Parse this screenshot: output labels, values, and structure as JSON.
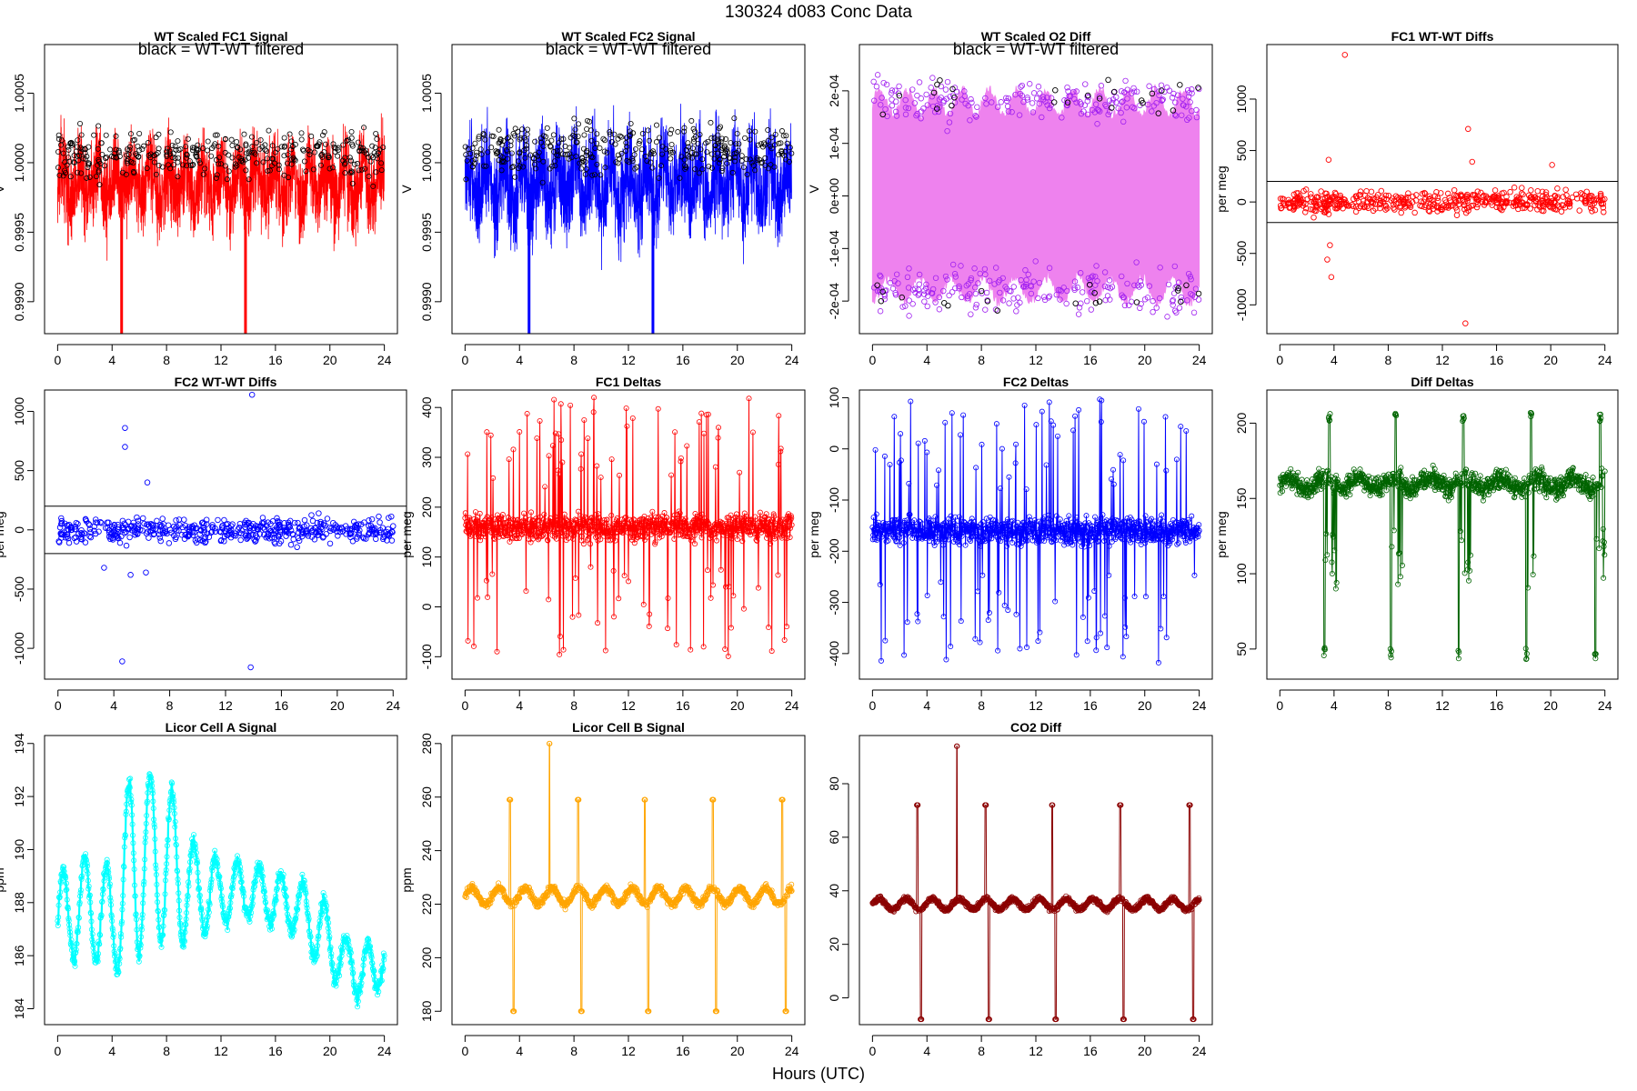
{
  "page_title": "130324   d083   Conc Data",
  "x_axis_title": "Hours (UTC)",
  "filter_note": "black = WT-WT filtered",
  "chart_data": [
    {
      "id": "fc1-signal",
      "type": "line",
      "title": "WT Scaled FC1 Signal",
      "ylabel": "V",
      "ylim": [
        0.99877,
        1.00085
      ],
      "yticks": [
        0.999,
        0.9995,
        1.0,
        1.0005
      ],
      "ytick_labels": [
        "0.9990",
        "0.9995",
        "1.0000",
        "1.0005"
      ],
      "xlim": [
        -0.96,
        24.96
      ],
      "xticks": [
        0,
        4,
        8,
        12,
        16,
        20,
        24
      ],
      "color": "#ff0000",
      "points_color": "#000000",
      "baseline": 0.99985,
      "amplitude": 0.00035,
      "series_style": "dense-noise",
      "note": "black = WT-WT filtered",
      "gaps": [
        {
          "x": 4.7,
          "to": 0.99875
        },
        {
          "x": 13.8,
          "to": 0.99875
        }
      ]
    },
    {
      "id": "fc2-signal",
      "type": "line",
      "title": "WT Scaled FC2 Signal",
      "ylabel": "V",
      "ylim": [
        0.99877,
        1.00085
      ],
      "yticks": [
        0.999,
        0.9995,
        1.0,
        1.0005
      ],
      "ytick_labels": [
        "0.9990",
        "0.9995",
        "1.0000",
        "1.0005"
      ],
      "xlim": [
        -0.96,
        24.96
      ],
      "xticks": [
        0,
        4,
        8,
        12,
        16,
        20,
        24
      ],
      "color": "#0000ff",
      "points_color": "#000000",
      "baseline": 0.99985,
      "amplitude": 0.0004,
      "series_style": "dense-noise",
      "note": "black = WT-WT filtered",
      "gaps": [
        {
          "x": 4.7,
          "to": 0.99875
        },
        {
          "x": 13.8,
          "to": 0.99875
        }
      ]
    },
    {
      "id": "o2-diff",
      "type": "line",
      "title": "WT Scaled O2 Diff",
      "ylabel": "V",
      "ylim": [
        -0.000262,
        0.000288
      ],
      "yticks": [
        -0.0002,
        -0.0001,
        0,
        0.0001,
        0.0002
      ],
      "ytick_labels": [
        "-2e-04",
        "-1e-04",
        "0e+00",
        "1e-04",
        "2e-04"
      ],
      "xlim": [
        -0.96,
        24.96
      ],
      "xticks": [
        0,
        4,
        8,
        12,
        16,
        20,
        24
      ],
      "color": "#ee82ee",
      "points_color": "#a020f0",
      "baseline": 0,
      "amplitude": 0.0002,
      "series_style": "band",
      "note": "black = WT-WT filtered"
    },
    {
      "id": "fc1-wtwt",
      "type": "scatter",
      "title": "FC1 WT-WT Diffs",
      "ylabel": "per meg",
      "ylim": [
        -1280,
        1530
      ],
      "yticks": [
        -1000,
        -500,
        0,
        500,
        1000
      ],
      "ytick_labels": [
        "-1000",
        "-500",
        "0",
        "500",
        "1000"
      ],
      "xlim": [
        -0.96,
        24.96
      ],
      "xticks": [
        0,
        4,
        8,
        12,
        16,
        20,
        24
      ],
      "color": "#ff0000",
      "hlines": [
        200,
        -200
      ],
      "baseline": 0,
      "amplitude": 90,
      "outliers": [
        {
          "x": 4.8,
          "y": 1430
        },
        {
          "x": 3.6,
          "y": 410
        },
        {
          "x": 3.5,
          "y": -560
        },
        {
          "x": 3.8,
          "y": -730
        },
        {
          "x": 3.7,
          "y": -420
        },
        {
          "x": 13.9,
          "y": 710
        },
        {
          "x": 13.7,
          "y": -1180
        },
        {
          "x": 14.2,
          "y": 390
        },
        {
          "x": 20.1,
          "y": 360
        }
      ]
    },
    {
      "id": "fc2-wtwt",
      "type": "scatter",
      "title": "FC2 WT-WT Diffs",
      "ylabel": "per meg",
      "ylim": [
        -1260,
        1180
      ],
      "yticks": [
        -1000,
        -500,
        0,
        500,
        1000
      ],
      "ytick_labels": [
        "-1000",
        "-500",
        "0",
        "500",
        "1000"
      ],
      "xlim": [
        -0.96,
        24.96
      ],
      "xticks": [
        0,
        4,
        8,
        12,
        16,
        20,
        24
      ],
      "color": "#0000ff",
      "hlines": [
        200,
        -200
      ],
      "baseline": 0,
      "amplitude": 90,
      "outliers": [
        {
          "x": 4.8,
          "y": 860
        },
        {
          "x": 4.8,
          "y": 700
        },
        {
          "x": 4.6,
          "y": -1110
        },
        {
          "x": 6.4,
          "y": 400
        },
        {
          "x": 3.3,
          "y": -320
        },
        {
          "x": 13.9,
          "y": 1140
        },
        {
          "x": 13.8,
          "y": -1160
        },
        {
          "x": 5.2,
          "y": -380
        },
        {
          "x": 6.3,
          "y": -360
        }
      ]
    },
    {
      "id": "fc1-deltas",
      "type": "line",
      "title": "FC1 Deltas",
      "ylabel": "per meg",
      "ylim": [
        -145,
        435
      ],
      "yticks": [
        -100,
        0,
        100,
        200,
        300,
        400
      ],
      "ytick_labels": [
        "-100",
        "0",
        "100",
        "200",
        "300",
        "400"
      ],
      "xlim": [
        -0.96,
        24.96
      ],
      "xticks": [
        0,
        4,
        8,
        12,
        16,
        20,
        24
      ],
      "color": "#ff0000",
      "baseline": 160,
      "amplitude": 50,
      "series_style": "spiky"
    },
    {
      "id": "fc2-deltas",
      "type": "line",
      "title": "FC2 Deltas",
      "ylabel": "per meg",
      "ylim": [
        -450,
        115
      ],
      "yticks": [
        -400,
        -300,
        -200,
        -100,
        0,
        100
      ],
      "ytick_labels": [
        "-400",
        "-300",
        "-200",
        "-100",
        "0",
        "100"
      ],
      "xlim": [
        -0.96,
        24.96
      ],
      "xticks": [
        0,
        4,
        8,
        12,
        16,
        20,
        24
      ],
      "color": "#0000ff",
      "baseline": -160,
      "amplitude": 50,
      "series_style": "spiky"
    },
    {
      "id": "diff-deltas",
      "type": "line",
      "title": "Diff Deltas",
      "ylabel": "per meg",
      "ylim": [
        30,
        222
      ],
      "yticks": [
        50,
        100,
        150,
        200
      ],
      "ytick_labels": [
        "50",
        "100",
        "150",
        "200"
      ],
      "xlim": [
        -0.96,
        24.96
      ],
      "xticks": [
        0,
        4,
        8,
        12,
        16,
        20,
        24
      ],
      "color": "#006400",
      "baseline": 160,
      "amplitude": 6,
      "series_style": "cal-dips",
      "cal_times": [
        3.3,
        8.2,
        13.2,
        18.2,
        23.3
      ],
      "cal_low": 43,
      "cal_high": 207
    },
    {
      "id": "licor-a",
      "type": "line",
      "title": "Licor Cell A Signal",
      "ylabel": "ppm",
      "ylim": [
        183.4,
        194.3
      ],
      "yticks": [
        184,
        186,
        188,
        190,
        192,
        194
      ],
      "ytick_labels": [
        "184",
        "186",
        "188",
        "190",
        "192",
        "194"
      ],
      "xlim": [
        -0.96,
        24.96
      ],
      "xticks": [
        0,
        4,
        8,
        12,
        16,
        20,
        24
      ],
      "color": "#00ffff",
      "series_style": "oscillation",
      "envelope": [
        [
          0,
          187.2,
          1.9
        ],
        [
          2,
          188.0,
          1.8
        ],
        [
          4,
          187.3,
          2.0
        ],
        [
          5.5,
          189.5,
          3.8
        ],
        [
          7,
          189.7,
          3.0
        ],
        [
          8.5,
          189.3,
          3.0
        ],
        [
          10,
          188.4,
          1.8
        ],
        [
          12,
          188.4,
          1.2
        ],
        [
          14,
          188.5,
          1.0
        ],
        [
          16,
          188.1,
          1.0
        ],
        [
          18,
          187.8,
          1.0
        ],
        [
          19.5,
          186.7,
          1.5
        ],
        [
          21,
          185.8,
          0.9
        ],
        [
          23,
          185.2,
          1.3
        ],
        [
          24,
          186.0,
          0.6
        ]
      ]
    },
    {
      "id": "licor-b",
      "type": "line",
      "title": "Licor Cell B Signal",
      "ylabel": "ppm",
      "ylim": [
        175,
        283
      ],
      "yticks": [
        180,
        200,
        220,
        240,
        260,
        280
      ],
      "ytick_labels": [
        "180",
        "200",
        "220",
        "240",
        "260",
        "280"
      ],
      "xlim": [
        -0.96,
        24.96
      ],
      "xticks": [
        0,
        4,
        8,
        12,
        16,
        20,
        24
      ],
      "color": "#ffa500",
      "baseline": 223,
      "amplitude": 3,
      "series_style": "cal-spikes",
      "cal_times": [
        3.3,
        8.3,
        13.2,
        18.2,
        23.3
      ],
      "cal_low": 180,
      "cal_high": 259,
      "extra_spikes": [
        {
          "x": 6.2,
          "y": 280
        }
      ]
    },
    {
      "id": "co2-diff",
      "type": "line",
      "title": "CO2 Diff",
      "ylabel": "",
      "ylim": [
        -10,
        98
      ],
      "yticks": [
        0,
        20,
        40,
        60,
        80
      ],
      "ytick_labels": [
        "0",
        "20",
        "40",
        "60",
        "80"
      ],
      "xlim": [
        -0.96,
        24.96
      ],
      "xticks": [
        0,
        4,
        8,
        12,
        16,
        20,
        24
      ],
      "color": "#8b0000",
      "baseline": 35,
      "amplitude": 2,
      "series_style": "cal-spikes",
      "cal_times": [
        3.3,
        8.3,
        13.2,
        18.2,
        23.3
      ],
      "cal_low": -8,
      "cal_high": 72,
      "extra_spikes": [
        {
          "x": 6.2,
          "y": 94
        }
      ]
    }
  ]
}
